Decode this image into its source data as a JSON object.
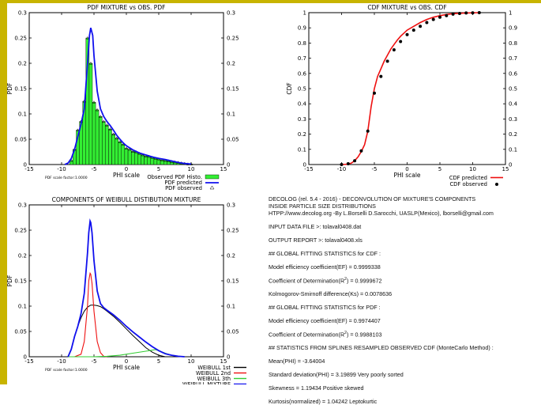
{
  "colors": {
    "border": "#c8b400",
    "histogram": "#33ee33",
    "predicted_pdf": "#1010ee",
    "predicted_cdf": "#ee1010",
    "weibull_1st": "#000000",
    "weibull_2nd": "#ee1010",
    "weibull_3th": "#33cc33",
    "weibull_mixture": "#1010ee"
  },
  "chart_data": [
    {
      "id": "pdf",
      "type": "bar",
      "title": "PDF MIXTURE vs OBS. PDF",
      "xlabel": "PHI scale",
      "ylabel": "PDF",
      "xlim": [
        -15,
        15
      ],
      "ylim": [
        0,
        0.3
      ],
      "xticks": [
        "-15",
        "-10",
        "-5",
        "0",
        "5",
        "10",
        "15"
      ],
      "yticks": [
        "0",
        "0.05",
        "0.1",
        "0.15",
        "0.2",
        "0.25",
        "0.3"
      ],
      "scale_note": "PDF scale factor:1.0000",
      "legend": [
        "Observed PDF Histo.",
        "PDF predicted",
        "PDF observed"
      ],
      "legend_position": "bottom-right (below plot)",
      "bar_width": 0.5,
      "histogram": {
        "x": [
          -8.5,
          -8,
          -7.5,
          -7,
          -6.5,
          -6,
          -5.5,
          -5,
          -4.5,
          -4,
          -3.5,
          -3,
          -2.5,
          -2,
          -1.5,
          -1,
          -0.5,
          0,
          0.5,
          1,
          1.5,
          2,
          2.5,
          3,
          3.5,
          4,
          4.5,
          5,
          5.5,
          6,
          6.5,
          7,
          7.5,
          8,
          8.5,
          9,
          9.5,
          10
        ],
        "values": [
          0.008,
          0.03,
          0.068,
          0.085,
          0.125,
          0.25,
          0.2,
          0.123,
          0.108,
          0.095,
          0.085,
          0.078,
          0.07,
          0.06,
          0.052,
          0.045,
          0.04,
          0.032,
          0.03,
          0.026,
          0.025,
          0.022,
          0.019,
          0.017,
          0.016,
          0.014,
          0.012,
          0.011,
          0.009,
          0.008,
          0.007,
          0.006,
          0.005,
          0.004,
          0.003,
          0.002,
          0.001,
          0.001
        ]
      },
      "series": [
        {
          "name": "PDF predicted",
          "x": [
            -9.5,
            -9,
            -8.5,
            -8,
            -7.5,
            -7,
            -6.5,
            -6,
            -5.7,
            -5.5,
            -5.2,
            -5,
            -4.5,
            -4,
            -3.5,
            -3,
            -2.5,
            -2,
            -1.5,
            -1,
            -0.5,
            0,
            1,
            2,
            3,
            4,
            5,
            6,
            7,
            8,
            9,
            10
          ],
          "y": [
            0,
            0.003,
            0.012,
            0.03,
            0.055,
            0.08,
            0.11,
            0.2,
            0.255,
            0.27,
            0.255,
            0.215,
            0.145,
            0.11,
            0.095,
            0.085,
            0.077,
            0.068,
            0.058,
            0.05,
            0.043,
            0.037,
            0.029,
            0.023,
            0.019,
            0.015,
            0.012,
            0.01,
            0.007,
            0.004,
            0.002,
            0.001
          ]
        }
      ]
    },
    {
      "id": "cdf",
      "type": "line",
      "title": "CDF MIXTURE vs OBS. CDF",
      "xlabel": "PHI scale",
      "ylabel": "CDF",
      "xlim": [
        -15,
        15
      ],
      "ylim": [
        0,
        1
      ],
      "xticks": [
        "-15",
        "-10",
        "-5",
        "0",
        "5",
        "10",
        "15"
      ],
      "yticks": [
        "0",
        "0.1",
        "0.2",
        "0.3",
        "0.4",
        "0.5",
        "0.6",
        "0.7",
        "0.8",
        "0.9",
        "1"
      ],
      "legend": [
        "CDF predicted",
        "CDF observed"
      ],
      "legend_position": "bottom-right (below plot)",
      "series": [
        {
          "name": "CDF predicted",
          "x": [
            -10,
            -9,
            -8.5,
            -8,
            -7.5,
            -7,
            -6.5,
            -6,
            -5.5,
            -5,
            -4.5,
            -4,
            -3.5,
            -3,
            -2.5,
            -2,
            -1.5,
            -1,
            -0.5,
            0,
            1,
            2,
            3,
            4,
            5,
            6,
            7,
            8,
            9,
            10,
            11
          ],
          "y": [
            0,
            0.002,
            0.01,
            0.025,
            0.05,
            0.085,
            0.13,
            0.22,
            0.38,
            0.5,
            0.58,
            0.63,
            0.68,
            0.72,
            0.76,
            0.79,
            0.82,
            0.845,
            0.865,
            0.885,
            0.91,
            0.935,
            0.955,
            0.97,
            0.98,
            0.988,
            0.993,
            0.996,
            0.998,
            0.999,
            1
          ]
        },
        {
          "name": "CDF observed",
          "x": [
            -10,
            -9,
            -8,
            -7,
            -6,
            -5,
            -4,
            -3,
            -2,
            -1,
            0,
            1,
            2,
            3,
            4,
            5,
            6,
            7,
            8,
            9,
            10,
            11
          ],
          "y": [
            0,
            0.005,
            0.025,
            0.09,
            0.22,
            0.47,
            0.58,
            0.68,
            0.755,
            0.81,
            0.855,
            0.885,
            0.91,
            0.935,
            0.955,
            0.97,
            0.98,
            0.99,
            0.995,
            0.998,
            0.999,
            1
          ]
        }
      ]
    },
    {
      "id": "weibull",
      "type": "line",
      "title": "COMPONENTS OF WEIBULL DISTIBUTION MIXTURE",
      "xlabel": "PHI scale",
      "ylabel": "PDF",
      "xlim": [
        -15,
        15
      ],
      "ylim": [
        0,
        0.3
      ],
      "xticks": [
        "-15",
        "-10",
        "-5",
        "0",
        "5",
        "10",
        "15"
      ],
      "yticks": [
        "0",
        "0.05",
        "0.1",
        "0.15",
        "0.2",
        "0.25",
        "0.3"
      ],
      "scale_note": "PDF scale factor:1.0000",
      "legend": [
        "WEIBULL 1st",
        "WEIBULL 2nd",
        "WEIBULL 3th",
        "WEIBULL MIXTURE"
      ],
      "legend_position": "bottom-right (below plot)",
      "series": [
        {
          "name": "WEIBULL 1st",
          "x": [
            -9,
            -8.5,
            -8,
            -7.5,
            -7,
            -6.5,
            -6,
            -5.5,
            -5,
            -4.5,
            -4,
            -3.5,
            -3,
            -2,
            -1,
            0,
            1,
            2,
            3,
            4,
            5,
            6
          ],
          "y": [
            0,
            0.015,
            0.04,
            0.06,
            0.077,
            0.09,
            0.098,
            0.102,
            0.102,
            0.101,
            0.099,
            0.095,
            0.09,
            0.08,
            0.068,
            0.055,
            0.042,
            0.03,
            0.018,
            0.009,
            0.003,
            0
          ]
        },
        {
          "name": "WEIBULL 2nd",
          "x": [
            -8,
            -7,
            -6.5,
            -6,
            -5.8,
            -5.6,
            -5.5,
            -5.3,
            -5,
            -4.5,
            -4,
            -3.5,
            -3
          ],
          "y": [
            0,
            0.005,
            0.03,
            0.1,
            0.15,
            0.165,
            0.163,
            0.145,
            0.09,
            0.03,
            0.008,
            0.001,
            0
          ]
        },
        {
          "name": "WEIBULL 3th",
          "x": [
            -9,
            -5,
            -3,
            -1,
            1,
            3,
            4.5,
            5,
            6,
            7,
            8,
            9
          ],
          "y": [
            0,
            0,
            0.001,
            0.003,
            0.007,
            0.011,
            0.014,
            0.012,
            0.007,
            0.003,
            0.001,
            0
          ]
        },
        {
          "name": "WEIBULL MIXTURE",
          "x": [
            -9,
            -8.5,
            -8,
            -7.5,
            -7,
            -6.5,
            -6,
            -5.8,
            -5.6,
            -5.5,
            -5.3,
            -5,
            -4.5,
            -4,
            -3.5,
            -3,
            -2,
            -1,
            0,
            1,
            2,
            3,
            4,
            4.5,
            5,
            6,
            7,
            8,
            9
          ],
          "y": [
            0,
            0.015,
            0.04,
            0.06,
            0.085,
            0.125,
            0.205,
            0.245,
            0.268,
            0.265,
            0.245,
            0.19,
            0.13,
            0.105,
            0.097,
            0.092,
            0.083,
            0.072,
            0.06,
            0.049,
            0.039,
            0.029,
            0.02,
            0.016,
            0.012,
            0.006,
            0.003,
            0.001,
            0
          ]
        }
      ]
    }
  ],
  "info": {
    "header_1": "DECOLOG (rel. 5.4 - 2016) - DECONVOLUTION OF MIXTURE'S COMPONENTS",
    "header_2": "INSIDE PARTICLE SIZE DISTRIBUTIONS",
    "header_3": "HTPP://www.decolog.org  -By L.Borselli  D.Sarocchi, UASLP(Mexico), lborselli@gmail.com",
    "input_file": "INPUT DATA FILE >: tolaval0408.dat",
    "output_report": "OUTPUT REPORT >: tolaval0408.xls",
    "cdf_stats_heading": "## GLOBAL FITTING STATISTICS for CDF :",
    "cdf_ef": "Model efficiency coefficient(EF) =  0.9999338",
    "cdf_r2_label": "Coefficient of Determination(R",
    "cdf_r2_sup": "2",
    "cdf_r2_value": ") =  0.9999672",
    "cdf_ks": "Kolmogorov-Smirnoff difference(Ks) =  0.0078636",
    "pdf_stats_heading": "## GLOBAL FITTING STATISTICS for PDF :",
    "pdf_ef": "Model efficiency coefficient(EF) =  0.9974407",
    "pdf_r2_label": "Coefficient of Determination(R",
    "pdf_r2_sup": "2",
    "pdf_r2_value": ") =  0.9988103",
    "spline_heading": "## STATISTICS FROM SPLINES RESAMPLED OBSERVED CDF (MonteCarlo Method) :",
    "mean": "Mean(PHI) =   -3.64004",
    "std": "Standard deviation(PHI) =   3.19899     Very poorly sorted",
    "skew": "Skewness =   1.19434    Positive skewed",
    "kurt": "Kurtosis(normalized) =   1.04242   Leptokurtic"
  }
}
